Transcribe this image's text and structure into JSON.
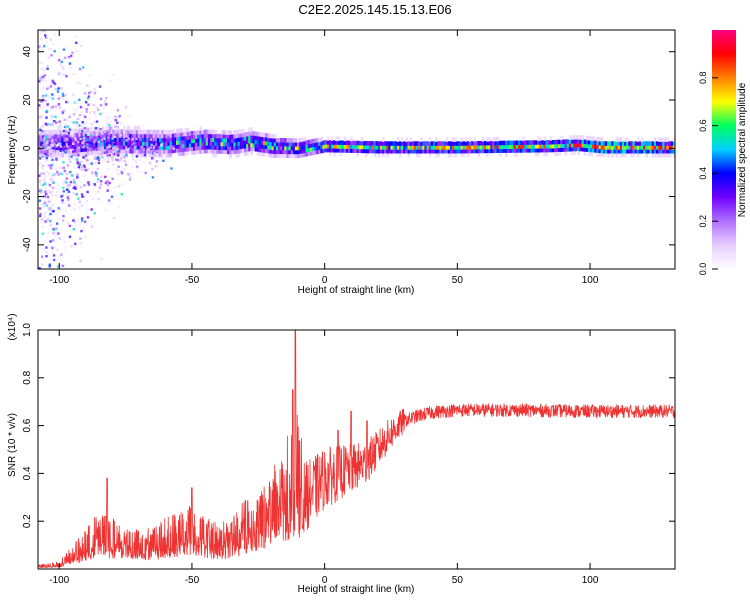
{
  "title": "C2E2.2025.145.15.13.E06",
  "chart_data": [
    {
      "type": "heatmap",
      "name": "spectrogram",
      "xlabel": "Height of straight line (km)",
      "ylabel": "Frequency (Hz)",
      "xlim": [
        -108,
        132
      ],
      "ylim": [
        -50,
        49
      ],
      "xticks": [
        -100,
        -50,
        0,
        50,
        100
      ],
      "yticks": [
        -40,
        -20,
        0,
        20,
        40
      ],
      "colorbar": {
        "label": "Normalized spectral amplitude",
        "range": [
          0,
          1
        ],
        "ticks": [
          0.0,
          0.2,
          0.4,
          0.6,
          0.8
        ],
        "colormap": [
          "#ffffff",
          "#e6ccff",
          "#b070ff",
          "#7000ff",
          "#0000ff",
          "#00d0ff",
          "#00ff60",
          "#ffff00",
          "#ff8000",
          "#ff0000",
          "#ff0080"
        ]
      },
      "band": {
        "center_hz": [
          [
            -100,
            2
          ],
          [
            -80,
            3
          ],
          [
            -60,
            2
          ],
          [
            -45,
            3
          ],
          [
            -35,
            2
          ],
          [
            -28,
            3
          ],
          [
            -20,
            1
          ],
          [
            -10,
            0
          ],
          [
            0,
            1
          ],
          [
            20,
            0.5
          ],
          [
            50,
            0.5
          ],
          [
            85,
            1
          ],
          [
            95,
            1.5
          ],
          [
            105,
            0.5
          ],
          [
            132,
            0.5
          ]
        ],
        "half_width_hz": [
          [
            -100,
            7
          ],
          [
            -60,
            6
          ],
          [
            -30,
            5
          ],
          [
            -12,
            4
          ],
          [
            0,
            3
          ],
          [
            132,
            3
          ]
        ],
        "peak_amplitude": [
          [
            -105,
            0.3
          ],
          [
            -90,
            0.4
          ],
          [
            -40,
            0.5
          ],
          [
            -25,
            0.62
          ],
          [
            -10,
            0.6
          ],
          [
            0,
            0.72
          ],
          [
            40,
            0.75
          ],
          [
            90,
            0.8
          ],
          [
            100,
            0.95
          ],
          [
            132,
            0.9
          ]
        ]
      },
      "scatter_region_km": [
        -108,
        -85
      ]
    },
    {
      "type": "line",
      "name": "snr",
      "xlabel": "Height of straight line (km)",
      "ylabel": "SNR (10 * v/v)",
      "ylabel_multiplier": "(x10⁴)",
      "color": "#ee3333",
      "xlim": [
        -108,
        132
      ],
      "ylim": [
        0,
        1.0
      ],
      "xticks": [
        -100,
        -50,
        0,
        50,
        100
      ],
      "yticks": [
        0.2,
        0.4,
        0.6,
        0.8,
        1.0
      ],
      "envelope": [
        [
          -108,
          0.01
        ],
        [
          -100,
          0.02
        ],
        [
          -95,
          0.06
        ],
        [
          -90,
          0.1
        ],
        [
          -85,
          0.15
        ],
        [
          -80,
          0.13
        ],
        [
          -75,
          0.12
        ],
        [
          -70,
          0.1
        ],
        [
          -65,
          0.11
        ],
        [
          -60,
          0.13
        ],
        [
          -55,
          0.15
        ],
        [
          -50,
          0.17
        ],
        [
          -45,
          0.13
        ],
        [
          -40,
          0.12
        ],
        [
          -35,
          0.13
        ],
        [
          -30,
          0.18
        ],
        [
          -25,
          0.22
        ],
        [
          -20,
          0.27
        ],
        [
          -15,
          0.32
        ],
        [
          -12,
          0.38
        ],
        [
          -10,
          0.42
        ],
        [
          -8,
          0.3
        ],
        [
          -5,
          0.32
        ],
        [
          0,
          0.38
        ],
        [
          5,
          0.4
        ],
        [
          10,
          0.42
        ],
        [
          15,
          0.44
        ],
        [
          20,
          0.5
        ],
        [
          25,
          0.57
        ],
        [
          30,
          0.62
        ],
        [
          35,
          0.64
        ],
        [
          40,
          0.655
        ],
        [
          50,
          0.665
        ],
        [
          70,
          0.665
        ],
        [
          100,
          0.66
        ],
        [
          132,
          0.66
        ]
      ],
      "peaks": [
        [
          -82,
          0.38
        ],
        [
          -50,
          0.34
        ],
        [
          -11,
          1.0
        ],
        [
          -12,
          0.75
        ],
        [
          5,
          0.58
        ],
        [
          10,
          0.66
        ],
        [
          16,
          0.62
        ]
      ]
    }
  ]
}
